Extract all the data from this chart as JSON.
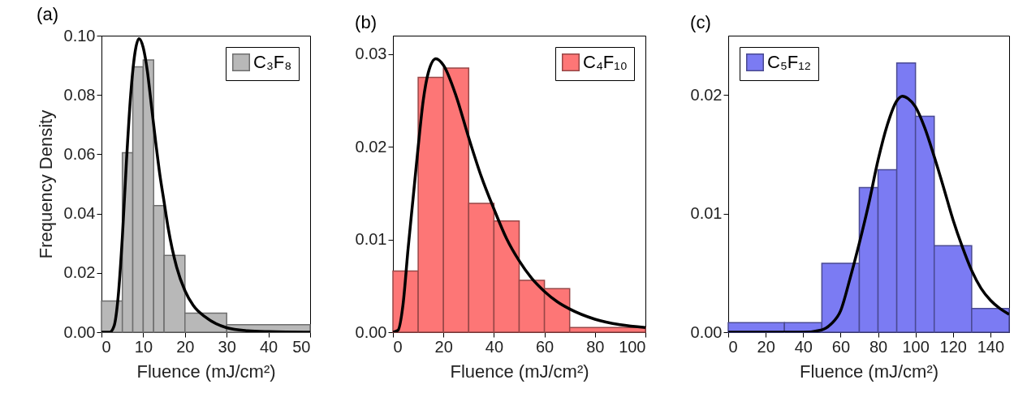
{
  "chart_data": [
    {
      "type": "histogram",
      "title": "(a)",
      "xlabel": "Fluence (mJ/cm²)",
      "ylabel": "Frequency Density",
      "legend": "top right",
      "xlim": [
        0,
        50
      ],
      "xticks": [
        0,
        10,
        20,
        30,
        40,
        50
      ],
      "ylim": [
        0,
        0.1
      ],
      "yticks": [
        {
          "value": 0,
          "label": "0.00"
        },
        {
          "value": 0.02,
          "label": "0.02"
        },
        {
          "value": 0.04,
          "label": "0.04"
        },
        {
          "value": 0.06,
          "label": "0.06"
        },
        {
          "value": 0.08,
          "label": "0.08"
        },
        {
          "value": 0.1,
          "label": "0.10"
        }
      ],
      "series": [
        {
          "name": "C₃F₈",
          "color": "#b8b8b8",
          "bins": [
            0,
            5,
            7.5,
            10,
            12.5,
            15,
            20,
            30,
            50
          ],
          "values": [
            0.0105,
            0.0605,
            0.0895,
            0.0918,
            0.0427,
            0.0259,
            0.0064,
            0.0025
          ]
        },
        {
          "type": "line",
          "color": "#000000",
          "x": [
            0,
            2,
            3,
            4,
            5,
            6,
            7,
            8,
            9,
            10,
            11,
            12,
            13,
            14,
            15,
            16,
            18,
            20,
            22,
            25,
            30,
            35,
            40,
            50
          ],
          "values": [
            0,
            0,
            0.002,
            0.012,
            0.032,
            0.058,
            0.08,
            0.094,
            0.099,
            0.096,
            0.088,
            0.076,
            0.064,
            0.053,
            0.044,
            0.035,
            0.022,
            0.014,
            0.009,
            0.005,
            0.0015,
            0.0005,
            0.0002,
            0
          ]
        }
      ]
    },
    {
      "type": "histogram",
      "title": "(b)",
      "xlabel": "Fluence (mJ/cm²)",
      "legend": "top right",
      "xlim": [
        0,
        100
      ],
      "xticks": [
        0,
        20,
        40,
        60,
        80,
        100
      ],
      "ylim": [
        0,
        0.032
      ],
      "yticks": [
        {
          "value": 0,
          "label": "0.00"
        },
        {
          "value": 0.01,
          "label": "0.01"
        },
        {
          "value": 0.02,
          "label": "0.02"
        },
        {
          "value": 0.03,
          "label": "0.03"
        }
      ],
      "series": [
        {
          "name": "C₄F₁₀",
          "color": "#fd7676",
          "bins": [
            0,
            10,
            20,
            30,
            40,
            50,
            60,
            70,
            100
          ],
          "values": [
            0.0066,
            0.0275,
            0.0285,
            0.0139,
            0.012,
            0.0056,
            0.0047,
            0.0005
          ]
        },
        {
          "type": "line",
          "color": "#000000",
          "x": [
            0,
            2,
            4,
            6,
            8,
            10,
            12,
            14,
            17,
            20,
            25,
            30,
            35,
            40,
            45,
            50,
            55,
            60,
            65,
            70,
            80,
            90,
            100
          ],
          "values": [
            0,
            0.0002,
            0.003,
            0.009,
            0.0145,
            0.02,
            0.025,
            0.028,
            0.0295,
            0.0288,
            0.0255,
            0.021,
            0.0168,
            0.0133,
            0.0101,
            0.0077,
            0.0058,
            0.0044,
            0.0033,
            0.0025,
            0.0014,
            0.0008,
            0.0005
          ]
        }
      ]
    },
    {
      "type": "histogram",
      "title": "(c)",
      "xlabel": "Fluence (mJ/cm²)",
      "legend": "top left",
      "xlim": [
        0,
        150
      ],
      "xticks": [
        0,
        20,
        40,
        60,
        80,
        100,
        120,
        140
      ],
      "ylim": [
        0,
        0.025
      ],
      "yticks": [
        {
          "value": 0,
          "label": "0.00"
        },
        {
          "value": 0.01,
          "label": "0.01"
        },
        {
          "value": 0.02,
          "label": "0.02"
        }
      ],
      "series": [
        {
          "name": "C₅F₁₂",
          "color": "#7b7bf3",
          "bins": [
            0,
            30,
            50,
            70,
            80,
            90,
            100,
            110,
            130,
            150
          ],
          "values": [
            0.0008,
            0.0008,
            0.0058,
            0.0122,
            0.0137,
            0.0227,
            0.0182,
            0.0073,
            0.002
          ]
        },
        {
          "type": "line",
          "color": "#000000",
          "x": [
            0,
            20,
            40,
            50,
            55,
            60,
            65,
            70,
            75,
            80,
            85,
            90,
            93,
            96,
            100,
            105,
            110,
            115,
            120,
            125,
            130,
            135,
            140,
            145,
            150
          ],
          "values": [
            0,
            0,
            0,
            0.0002,
            0.0007,
            0.0018,
            0.0045,
            0.0075,
            0.0108,
            0.0145,
            0.0175,
            0.0195,
            0.0199,
            0.0197,
            0.019,
            0.0172,
            0.0148,
            0.0122,
            0.0095,
            0.0072,
            0.0052,
            0.0037,
            0.0027,
            0.002,
            0.0015
          ]
        }
      ]
    }
  ]
}
